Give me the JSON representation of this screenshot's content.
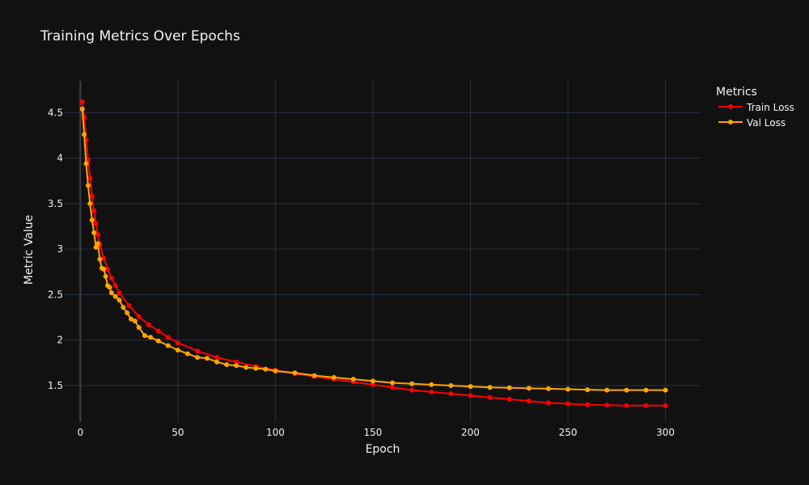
{
  "chart_data": {
    "type": "line",
    "title": "Training Metrics Over Epochs",
    "xlabel": "Epoch",
    "ylabel": "Metric Value",
    "xlim": [
      -8,
      318
    ],
    "ylim": [
      1.1,
      4.85
    ],
    "xticks": [
      0,
      50,
      100,
      150,
      200,
      250,
      300
    ],
    "yticks": [
      1.5,
      2,
      2.5,
      3,
      3.5,
      4,
      4.5
    ],
    "xtick_labels": [
      "0",
      "50",
      "100",
      "150",
      "200",
      "250",
      "300"
    ],
    "ytick_labels": [
      "1.5",
      "2",
      "2.5",
      "3",
      "3.5",
      "4",
      "4.5"
    ],
    "grid": true,
    "legend_title": "Metrics",
    "legend_position": "top-right-outside",
    "series": [
      {
        "name": "Train Loss",
        "color": "#ff0000",
        "markers": true,
        "x": [
          1,
          2,
          3,
          4,
          5,
          6,
          7,
          8,
          9,
          10,
          12,
          14,
          16,
          18,
          20,
          25,
          30,
          35,
          40,
          45,
          50,
          60,
          70,
          80,
          90,
          100,
          110,
          120,
          130,
          140,
          150,
          160,
          170,
          180,
          190,
          200,
          210,
          220,
          230,
          240,
          250,
          260,
          270,
          280,
          290,
          300
        ],
        "y": [
          4.62,
          4.45,
          4.2,
          3.98,
          3.78,
          3.58,
          3.42,
          3.28,
          3.16,
          3.05,
          2.9,
          2.78,
          2.68,
          2.6,
          2.52,
          2.38,
          2.26,
          2.17,
          2.1,
          2.03,
          1.97,
          1.88,
          1.81,
          1.76,
          1.71,
          1.67,
          1.63,
          1.6,
          1.57,
          1.54,
          1.51,
          1.48,
          1.45,
          1.43,
          1.41,
          1.39,
          1.37,
          1.35,
          1.33,
          1.31,
          1.3,
          1.29,
          1.285,
          1.28,
          1.28,
          1.28
        ]
      },
      {
        "name": "Val Loss",
        "color": "#ffa500",
        "markers": true,
        "x": [
          1,
          2,
          3,
          4,
          5,
          6,
          7,
          8,
          9,
          10,
          11,
          12,
          13,
          14,
          15,
          16,
          18,
          20,
          22,
          24,
          26,
          28,
          30,
          33,
          36,
          40,
          45,
          50,
          55,
          60,
          65,
          70,
          75,
          80,
          85,
          90,
          95,
          100,
          110,
          120,
          130,
          140,
          150,
          160,
          170,
          180,
          190,
          200,
          210,
          220,
          230,
          240,
          250,
          260,
          270,
          280,
          290,
          300
        ],
        "y": [
          4.54,
          4.26,
          3.94,
          3.7,
          3.5,
          3.32,
          3.18,
          3.02,
          3.06,
          2.89,
          2.79,
          2.78,
          2.7,
          2.6,
          2.58,
          2.52,
          2.48,
          2.44,
          2.36,
          2.3,
          2.23,
          2.21,
          2.14,
          2.05,
          2.03,
          1.99,
          1.94,
          1.89,
          1.85,
          1.81,
          1.8,
          1.76,
          1.73,
          1.72,
          1.7,
          1.69,
          1.68,
          1.66,
          1.64,
          1.61,
          1.59,
          1.57,
          1.55,
          1.53,
          1.52,
          1.51,
          1.5,
          1.49,
          1.48,
          1.475,
          1.47,
          1.465,
          1.46,
          1.455,
          1.45,
          1.45,
          1.45,
          1.45
        ]
      }
    ]
  }
}
